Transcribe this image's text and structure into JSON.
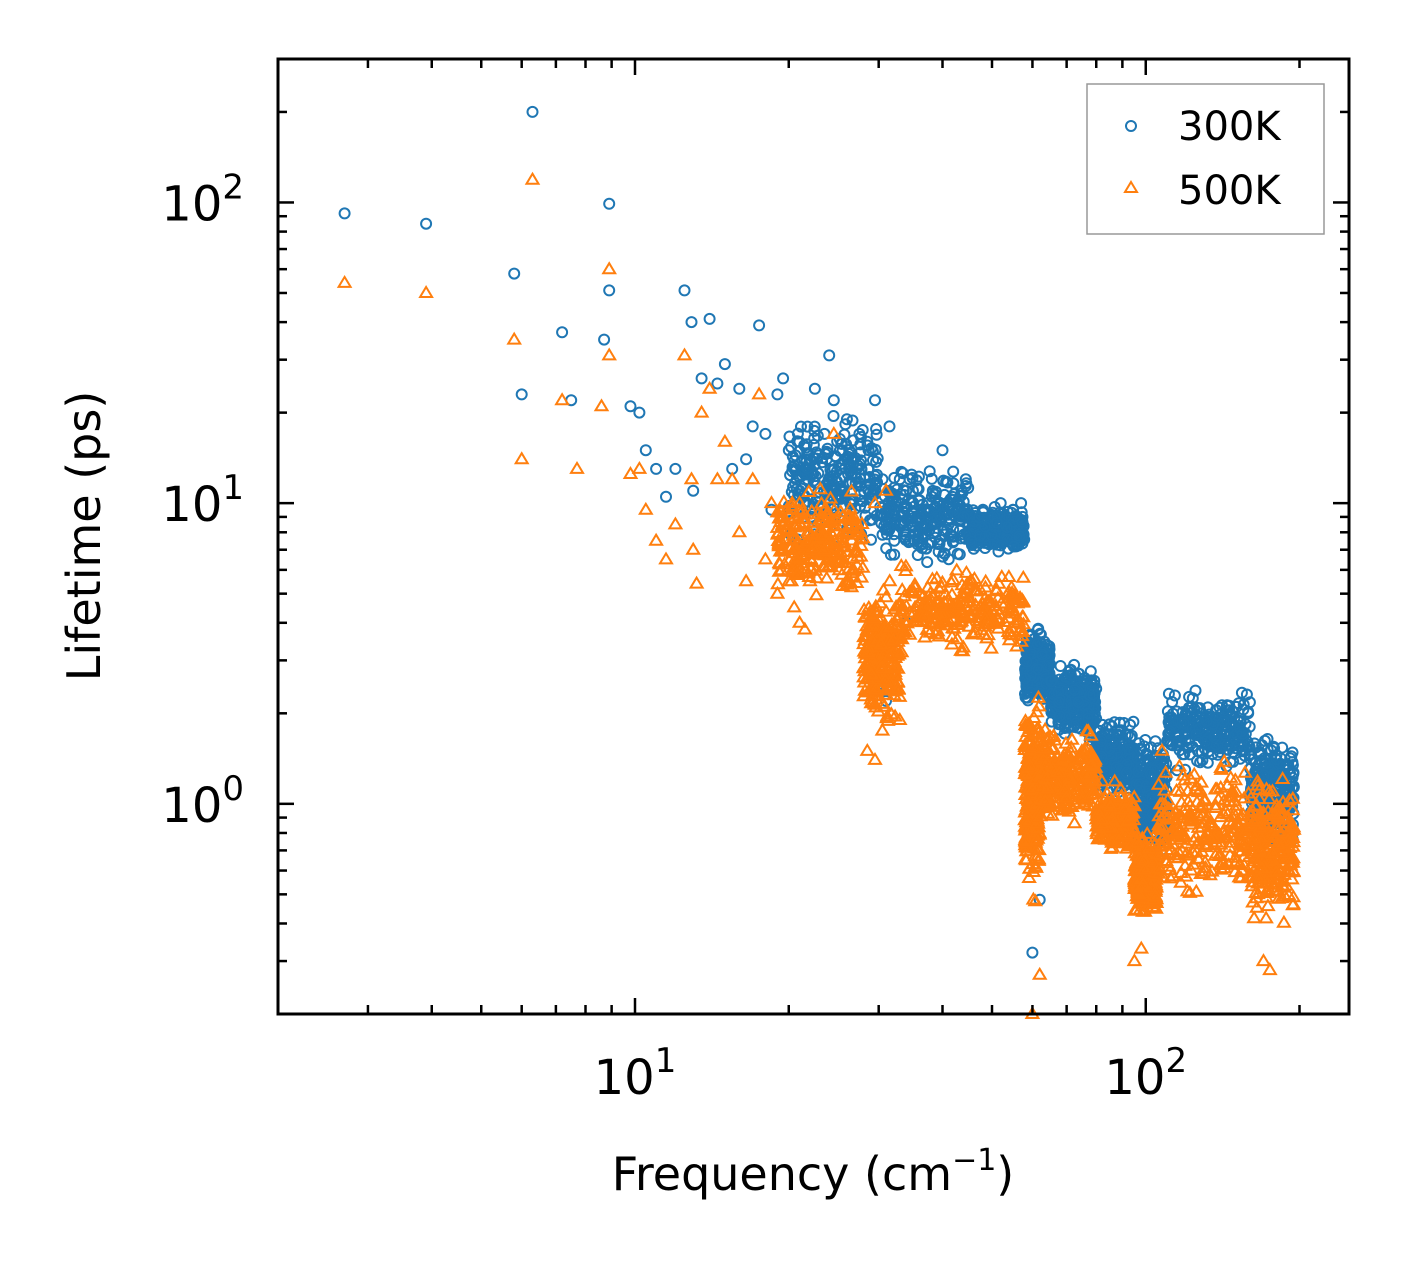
{
  "chart_data": {
    "type": "scatter",
    "xscale": "log",
    "yscale": "log",
    "xlim": [
      2.0,
      250.0
    ],
    "ylim": [
      0.2,
      300.0
    ],
    "xlabel": "Frequency (cm",
    "xlabel_sup": "−1",
    "xlabel_close": ")",
    "ylabel": "Lifetime (ps)",
    "x_major_ticks": [
      {
        "value": 10,
        "base": "10",
        "exp": "1"
      },
      {
        "value": 100,
        "base": "10",
        "exp": "2"
      }
    ],
    "y_major_ticks": [
      {
        "value": 1,
        "base": "10",
        "exp": "0"
      },
      {
        "value": 10,
        "base": "10",
        "exp": "1"
      },
      {
        "value": 100,
        "base": "10",
        "exp": "2"
      }
    ],
    "legend": {
      "position": "top-right"
    },
    "series": [
      {
        "name": "300K",
        "marker": "circle",
        "color": "#1f77b4",
        "points": [
          [
            2.7,
            92
          ],
          [
            3.9,
            85
          ],
          [
            5.8,
            58
          ],
          [
            6.3,
            200
          ],
          [
            6.0,
            23
          ],
          [
            7.2,
            37
          ],
          [
            7.5,
            22
          ],
          [
            8.7,
            35
          ],
          [
            8.9,
            99
          ],
          [
            8.9,
            51
          ],
          [
            9.8,
            21
          ],
          [
            10.2,
            20
          ],
          [
            10.5,
            15
          ],
          [
            11.0,
            13
          ],
          [
            11.5,
            10.5
          ],
          [
            12.0,
            13
          ],
          [
            12.5,
            51
          ],
          [
            12.9,
            40
          ],
          [
            13.0,
            11
          ],
          [
            13.5,
            26
          ],
          [
            14.0,
            41
          ],
          [
            14.5,
            25
          ],
          [
            15.0,
            29
          ],
          [
            15.5,
            13
          ],
          [
            16.0,
            24
          ],
          [
            16.5,
            14
          ],
          [
            17.0,
            18
          ],
          [
            17.5,
            39
          ],
          [
            18.0,
            17
          ],
          [
            18.5,
            9.5
          ],
          [
            19.0,
            23
          ],
          [
            19.5,
            26
          ],
          [
            20.0,
            15
          ],
          [
            20.5,
            13
          ],
          [
            21.0,
            11
          ],
          [
            22.0,
            14
          ],
          [
            22.5,
            24
          ],
          [
            23.5,
            17
          ],
          [
            24.0,
            31
          ],
          [
            24.5,
            22
          ],
          [
            25.5,
            15
          ],
          [
            26.0,
            19
          ],
          [
            27.5,
            17
          ],
          [
            28.5,
            16
          ],
          [
            29.5,
            22
          ],
          [
            30.5,
            12
          ],
          [
            31.5,
            18
          ],
          [
            33.0,
            12
          ],
          [
            35.0,
            11
          ],
          [
            36.0,
            9
          ],
          [
            40.0,
            15
          ],
          [
            44.0,
            9
          ],
          [
            48.0,
            9.5
          ],
          [
            52.0,
            10
          ],
          [
            55.0,
            9.5
          ],
          [
            57.0,
            10
          ],
          [
            30.0,
            2.5
          ],
          [
            31.0,
            2.2
          ],
          [
            32.0,
            3.5
          ],
          [
            34.0,
            4
          ],
          [
            60.0,
            0.32
          ],
          [
            62.0,
            0.48
          ],
          [
            100.0,
            0.5
          ],
          [
            102.0,
            0.68
          ]
        ],
        "bands": [
          {
            "x_start": 20,
            "x_end": 30,
            "y_low": 6.5,
            "y_high": 22
          },
          {
            "x_start": 30,
            "x_end": 45,
            "y_low": 6.0,
            "y_high": 14
          },
          {
            "x_start": 45,
            "x_end": 58,
            "y_low": 6.5,
            "y_high": 10
          },
          {
            "x_start": 58,
            "x_end": 65,
            "y_low": 2.0,
            "y_high": 4.0
          },
          {
            "x_start": 65,
            "x_end": 80,
            "y_low": 1.5,
            "y_high": 3.2
          },
          {
            "x_start": 80,
            "x_end": 95,
            "y_low": 1.0,
            "y_high": 2.0
          },
          {
            "x_start": 95,
            "x_end": 110,
            "y_low": 0.6,
            "y_high": 1.9
          },
          {
            "x_start": 110,
            "x_end": 160,
            "y_low": 1.2,
            "y_high": 2.5
          },
          {
            "x_start": 160,
            "x_end": 195,
            "y_low": 0.65,
            "y_high": 1.9
          }
        ]
      },
      {
        "name": "500K",
        "marker": "triangle",
        "color": "#ff7f0e",
        "points": [
          [
            2.7,
            54
          ],
          [
            3.9,
            50
          ],
          [
            5.8,
            35
          ],
          [
            6.0,
            14
          ],
          [
            6.3,
            119
          ],
          [
            7.2,
            22
          ],
          [
            7.7,
            13
          ],
          [
            8.6,
            21
          ],
          [
            8.9,
            60
          ],
          [
            8.9,
            31
          ],
          [
            9.8,
            12.5
          ],
          [
            10.2,
            13
          ],
          [
            10.5,
            9.5
          ],
          [
            11.0,
            7.5
          ],
          [
            11.5,
            6.5
          ],
          [
            12.0,
            8.5
          ],
          [
            12.5,
            31
          ],
          [
            12.9,
            12
          ],
          [
            13.0,
            7
          ],
          [
            13.2,
            5.4
          ],
          [
            13.5,
            20
          ],
          [
            14.0,
            24
          ],
          [
            14.5,
            12
          ],
          [
            15.0,
            16
          ],
          [
            15.5,
            12
          ],
          [
            16.0,
            8
          ],
          [
            16.5,
            5.5
          ],
          [
            17.0,
            12
          ],
          [
            17.5,
            23
          ],
          [
            18.0,
            6.5
          ],
          [
            18.5,
            10
          ],
          [
            19.0,
            5
          ],
          [
            20.0,
            5.5
          ],
          [
            20.5,
            4.5
          ],
          [
            21.0,
            4.0
          ],
          [
            21.5,
            3.8
          ],
          [
            22.0,
            5.5
          ],
          [
            23.5,
            7
          ],
          [
            24.5,
            17
          ],
          [
            25.5,
            9
          ],
          [
            29.5,
            10
          ],
          [
            31.0,
            11
          ],
          [
            28.5,
            1.5
          ],
          [
            29.5,
            1.4
          ],
          [
            33.0,
            1.9
          ],
          [
            60.0,
            0.2
          ],
          [
            62.0,
            0.27
          ],
          [
            95.0,
            0.3
          ],
          [
            98.0,
            0.33
          ],
          [
            170.0,
            0.3
          ],
          [
            175.0,
            0.28
          ]
        ],
        "bands": [
          {
            "x_start": 19,
            "x_end": 28,
            "y_low": 4.5,
            "y_high": 12
          },
          {
            "x_start": 28,
            "x_end": 33,
            "y_low": 1.6,
            "y_high": 6.0
          },
          {
            "x_start": 33,
            "x_end": 58,
            "y_low": 3.0,
            "y_high": 6.5
          },
          {
            "x_start": 58,
            "x_end": 62,
            "y_low": 0.45,
            "y_high": 2.5
          },
          {
            "x_start": 62,
            "x_end": 80,
            "y_low": 0.8,
            "y_high": 1.9
          },
          {
            "x_start": 80,
            "x_end": 95,
            "y_low": 0.65,
            "y_high": 1.2
          },
          {
            "x_start": 95,
            "x_end": 105,
            "y_low": 0.4,
            "y_high": 0.85
          },
          {
            "x_start": 105,
            "x_end": 160,
            "y_low": 0.45,
            "y_high": 1.6
          },
          {
            "x_start": 160,
            "x_end": 195,
            "y_low": 0.35,
            "y_high": 1.3
          }
        ]
      }
    ]
  }
}
